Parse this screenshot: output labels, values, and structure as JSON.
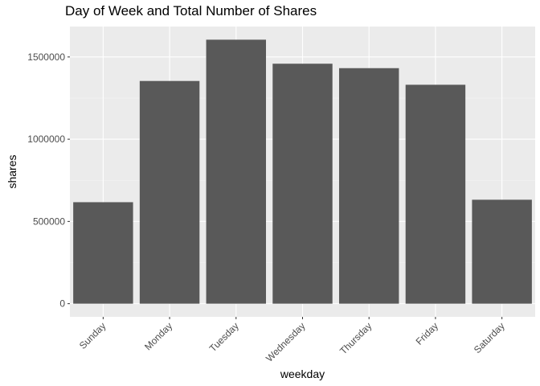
{
  "chart_data": {
    "type": "bar",
    "title": "Day of Week and Total Number of Shares",
    "xlabel": "weekday",
    "ylabel": "shares",
    "categories": [
      "Sunday",
      "Monday",
      "Tuesday",
      "Wednesday",
      "Thursday",
      "Friday",
      "Saturday"
    ],
    "values": [
      617000,
      1354000,
      1605000,
      1459000,
      1432000,
      1331000,
      632000
    ],
    "ylim": [
      -80000,
      1685000
    ],
    "yticks": [
      0,
      500000,
      1000000,
      1500000
    ],
    "ytick_labels": [
      "0",
      "500000",
      "1000000",
      "1500000"
    ],
    "grid": true,
    "colors": {
      "bar": "#595959",
      "panel_background": "#ebebeb",
      "grid_major": "#ffffff",
      "grid_minor": "#f5f5f5"
    }
  }
}
